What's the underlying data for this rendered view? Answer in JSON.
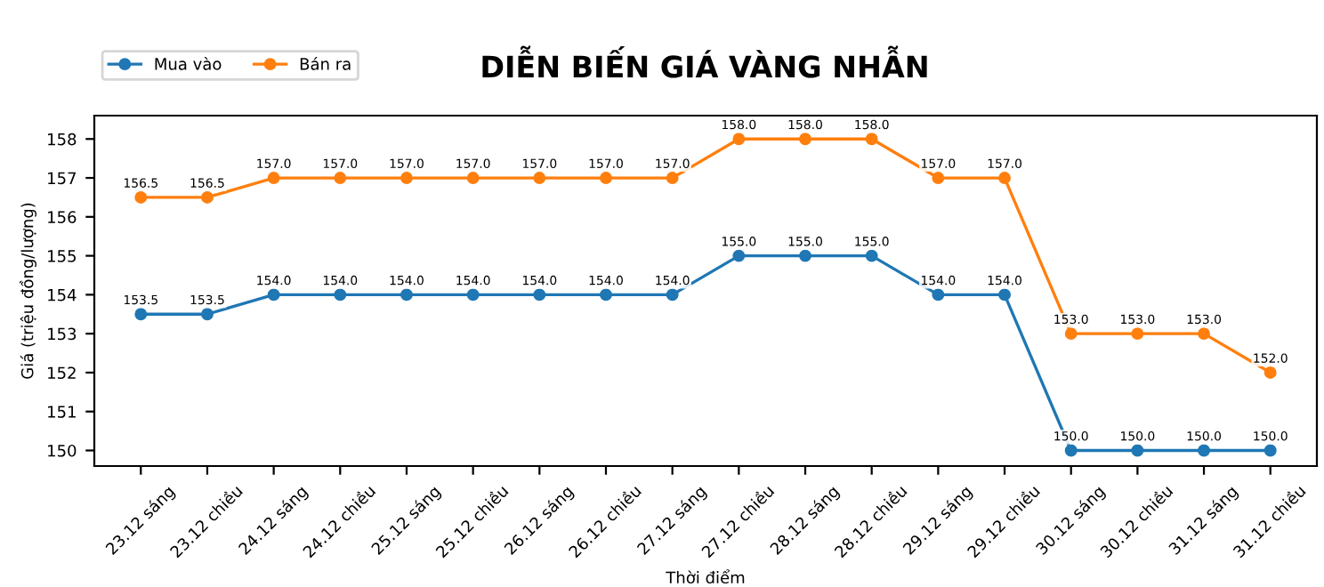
{
  "chart_data": {
    "type": "line",
    "title": "DIỄN BIẾN GIÁ VÀNG NHẪN",
    "xlabel": "Thời điểm",
    "ylabel": "Giá (triệu đồng/lượng)",
    "categories": [
      "23.12 sáng",
      "23.12 chiều",
      "24.12 sáng",
      "24.12 chiều",
      "25.12 sáng",
      "25.12 chiều",
      "26.12 sáng",
      "26.12 chiều",
      "27.12 sáng",
      "27.12 chiều",
      "28.12 sáng",
      "28.12 chiều",
      "29.12 sáng",
      "29.12 chiều",
      "30.12 sáng",
      "30.12 chiều",
      "31.12 sáng",
      "31.12 chiều"
    ],
    "series": [
      {
        "name": "Mua vào",
        "color": "#1f77b4",
        "values": [
          153.5,
          153.5,
          154,
          154,
          154,
          154,
          154,
          154,
          154,
          155,
          155,
          155,
          154,
          154,
          150,
          150,
          150,
          150
        ],
        "value_labels": [
          "153.5",
          "153.5",
          "154.0",
          "154.0",
          "154.0",
          "154.0",
          "154.0",
          "154.0",
          "154.0",
          "155.0",
          "155.0",
          "155.0",
          "154.0",
          "154.0",
          "150.0",
          "150.0",
          "150.0",
          "150.0"
        ]
      },
      {
        "name": "Bán ra",
        "color": "#ff7f0e",
        "values": [
          156.5,
          156.5,
          157,
          157,
          157,
          157,
          157,
          157,
          157,
          158,
          158,
          158,
          157,
          157,
          153,
          153,
          153,
          152
        ],
        "value_labels": [
          "156.5",
          "156.5",
          "157.0",
          "157.0",
          "157.0",
          "157.0",
          "157.0",
          "157.0",
          "157.0",
          "158.0",
          "158.0",
          "158.0",
          "157.0",
          "157.0",
          "153.0",
          "153.0",
          "153.0",
          "152.0"
        ]
      }
    ],
    "ylim": [
      149.6,
      158.6
    ],
    "yticks": [
      150,
      151,
      152,
      153,
      154,
      155,
      156,
      157,
      158
    ],
    "grid": false,
    "legend": "top left",
    "marker": "circle",
    "line_style": "solid"
  }
}
